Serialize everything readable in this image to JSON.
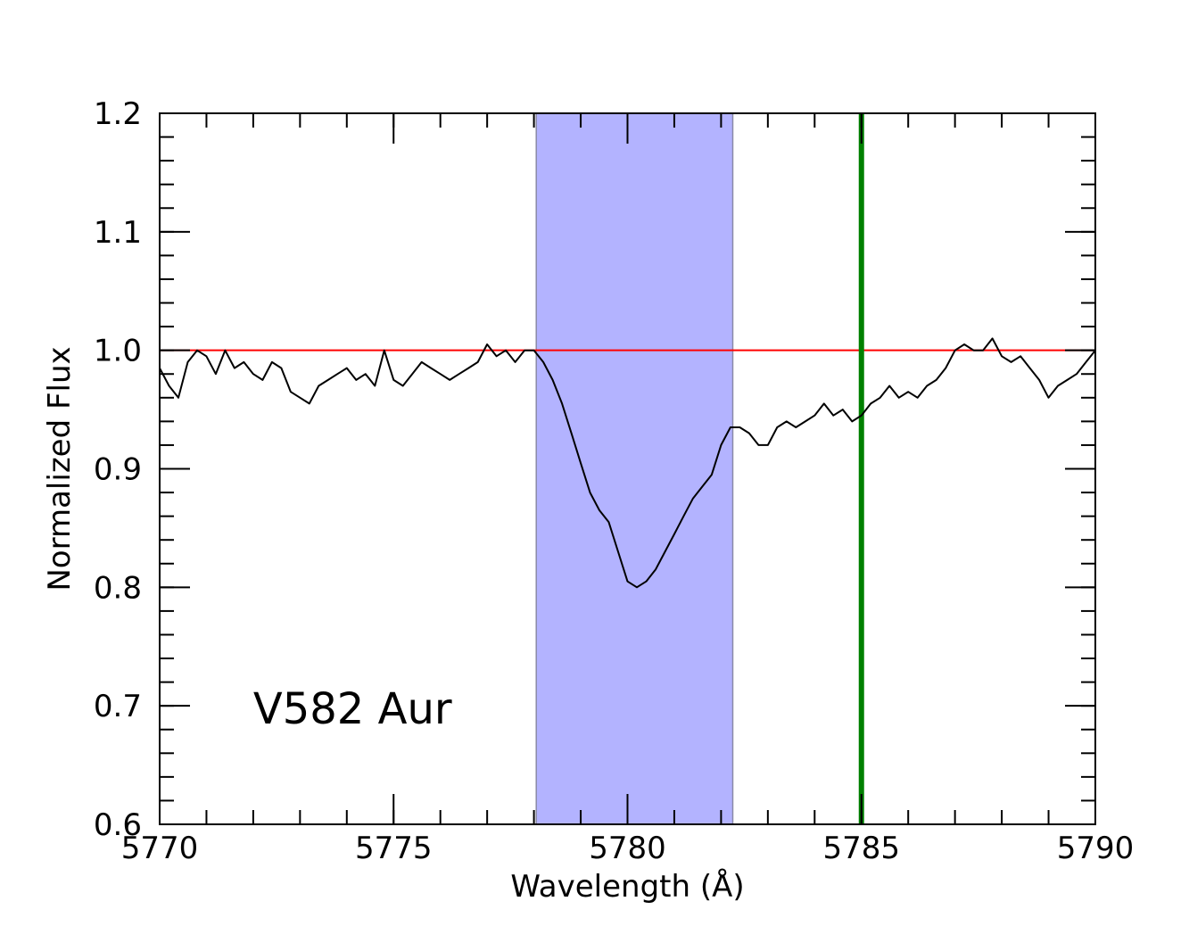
{
  "chart_data": {
    "type": "line",
    "title": "",
    "xlabel": "Wavelength (Å)",
    "ylabel": "Normalized Flux",
    "xlim": [
      5770,
      5790
    ],
    "ylim": [
      0.6,
      1.2
    ],
    "x_ticks": [
      5770,
      5775,
      5780,
      5785,
      5790
    ],
    "x_tick_labels": [
      "5770",
      "5775",
      "5780",
      "5785",
      "5790"
    ],
    "y_ticks": [
      0.6,
      0.7,
      0.8,
      0.9,
      1.0,
      1.1,
      1.2
    ],
    "y_tick_labels": [
      "0.6",
      "0.7",
      "0.8",
      "0.9",
      "1.0",
      "1.1",
      "1.2"
    ],
    "x_minor_step": 1,
    "y_minor_step": 0.02,
    "grid": false,
    "annotation": "V582 Aur",
    "shaded_band": {
      "x_start": 5778.05,
      "x_end": 5782.25,
      "color": "#b3b3ff"
    },
    "continuum_line": {
      "y": 1.0,
      "color": "#ff0000"
    },
    "marker_line": {
      "x": 5785.0,
      "color": "#008000"
    },
    "series": [
      {
        "color": "#000000",
        "x": [
          5770.0,
          5770.2,
          5770.4,
          5770.6,
          5770.8,
          5771.0,
          5771.2,
          5771.4,
          5771.6,
          5771.8,
          5772.0,
          5772.2,
          5772.4,
          5772.6,
          5772.8,
          5773.0,
          5773.2,
          5773.4,
          5773.6,
          5773.8,
          5774.0,
          5774.2,
          5774.4,
          5774.6,
          5774.8,
          5775.0,
          5775.2,
          5775.4,
          5775.6,
          5775.8,
          5776.0,
          5776.2,
          5776.4,
          5776.6,
          5776.8,
          5777.0,
          5777.2,
          5777.4,
          5777.6,
          5777.8,
          5778.0,
          5778.2,
          5778.4,
          5778.6,
          5778.8,
          5779.0,
          5779.2,
          5779.4,
          5779.6,
          5779.8,
          5780.0,
          5780.2,
          5780.4,
          5780.6,
          5780.8,
          5781.0,
          5781.2,
          5781.4,
          5781.6,
          5781.8,
          5782.0,
          5782.2,
          5782.4,
          5782.6,
          5782.8,
          5783.0,
          5783.2,
          5783.4,
          5783.6,
          5783.8,
          5784.0,
          5784.2,
          5784.4,
          5784.6,
          5784.8,
          5785.0,
          5785.2,
          5785.4,
          5785.6,
          5785.8,
          5786.0,
          5786.2,
          5786.4,
          5786.6,
          5786.8,
          5787.0,
          5787.2,
          5787.4,
          5787.6,
          5787.8,
          5788.0,
          5788.2,
          5788.4,
          5788.6,
          5788.8,
          5789.0,
          5789.2,
          5789.4,
          5789.6,
          5789.8,
          5790.0
        ],
        "y": [
          0.985,
          0.97,
          0.96,
          0.99,
          1.0,
          0.995,
          0.98,
          1.0,
          0.985,
          0.99,
          0.98,
          0.975,
          0.99,
          0.985,
          0.965,
          0.96,
          0.955,
          0.97,
          0.975,
          0.98,
          0.985,
          0.975,
          0.98,
          0.97,
          1.0,
          0.975,
          0.97,
          0.98,
          0.99,
          0.985,
          0.98,
          0.975,
          0.98,
          0.985,
          0.99,
          1.005,
          0.995,
          1.0,
          0.99,
          1.0,
          1.0,
          0.99,
          0.975,
          0.955,
          0.93,
          0.905,
          0.88,
          0.865,
          0.855,
          0.83,
          0.805,
          0.8,
          0.805,
          0.815,
          0.83,
          0.845,
          0.86,
          0.875,
          0.885,
          0.895,
          0.92,
          0.935,
          0.935,
          0.93,
          0.92,
          0.92,
          0.935,
          0.94,
          0.935,
          0.94,
          0.945,
          0.955,
          0.945,
          0.95,
          0.94,
          0.945,
          0.955,
          0.96,
          0.97,
          0.96,
          0.965,
          0.96,
          0.97,
          0.975,
          0.985,
          1.0,
          1.005,
          1.0,
          1.0,
          1.01,
          0.995,
          0.99,
          0.995,
          0.985,
          0.975,
          0.96,
          0.97,
          0.975,
          0.98,
          0.99,
          1.0
        ]
      }
    ]
  }
}
